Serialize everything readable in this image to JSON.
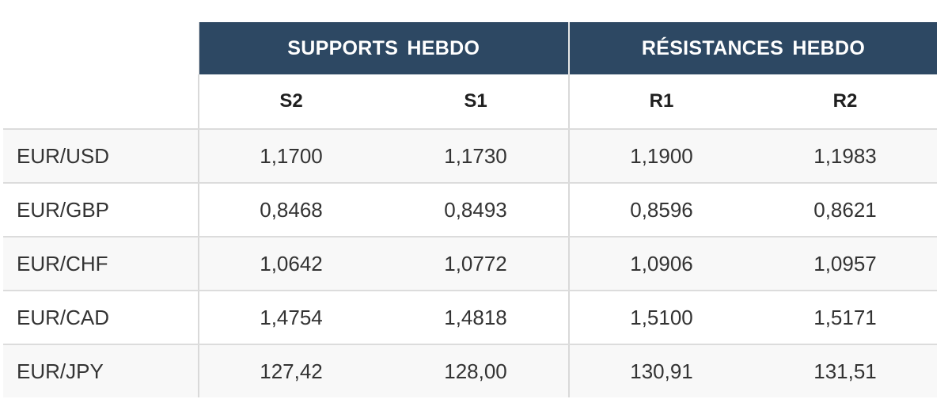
{
  "headers": {
    "group_supports": "SUPPORTS  HEBDO",
    "group_resistances": "RÉSISTANCES  HEBDO",
    "columns": [
      "S2",
      "S1",
      "R1",
      "R2"
    ]
  },
  "rows": [
    {
      "pair": "EUR/USD",
      "values": [
        "1,1700",
        "1,1730",
        "1,1900",
        "1,1983"
      ]
    },
    {
      "pair": "EUR/GBP",
      "values": [
        "0,8468",
        "0,8493",
        "0,8596",
        "0,8621"
      ]
    },
    {
      "pair": "EUR/CHF",
      "values": [
        "1,0642",
        "1,0772",
        "1,0906",
        "1,0957"
      ]
    },
    {
      "pair": "EUR/CAD",
      "values": [
        "1,4754",
        "1,4818",
        "1,5100",
        "1,5171"
      ]
    },
    {
      "pair": "EUR/JPY",
      "values": [
        "127,42",
        "128,00",
        "130,91",
        "131,51"
      ]
    }
  ],
  "colors": {
    "header_bg": "#2d4863",
    "header_text": "#ffffff",
    "row_alt_bg": "#f8f8f8",
    "border": "#dcdcdc"
  }
}
